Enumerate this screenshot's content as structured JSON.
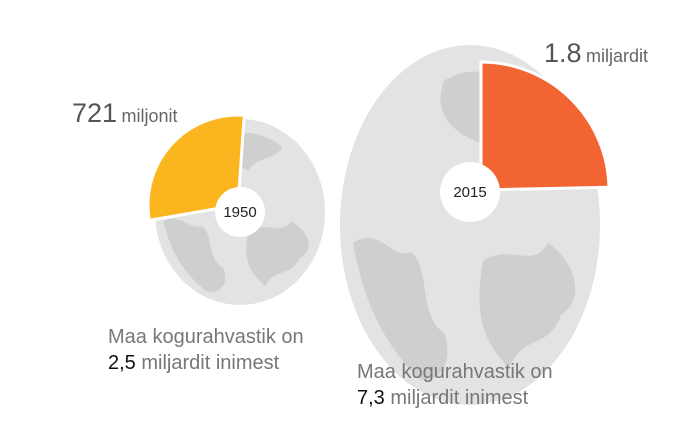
{
  "chart_data": [
    {
      "type": "pie",
      "year": "1950",
      "color": "#fbb61f",
      "highlight": {
        "value": 721,
        "label": "721"
      },
      "highlight_unit": "miljonit",
      "caption": "Maa kogurahvastik on",
      "total": {
        "value": 2500,
        "label": "2,5"
      },
      "total_unit": "miljardit inimest"
    },
    {
      "type": "pie",
      "year": "2015",
      "color": "#f26532",
      "highlight": {
        "value": 1800,
        "label": "1.8"
      },
      "highlight_unit": "miljardit",
      "caption": "Maa kogurahvastik on",
      "total": {
        "value": 7300,
        "label": "7,3"
      },
      "total_unit": "miljardit inimest"
    }
  ]
}
